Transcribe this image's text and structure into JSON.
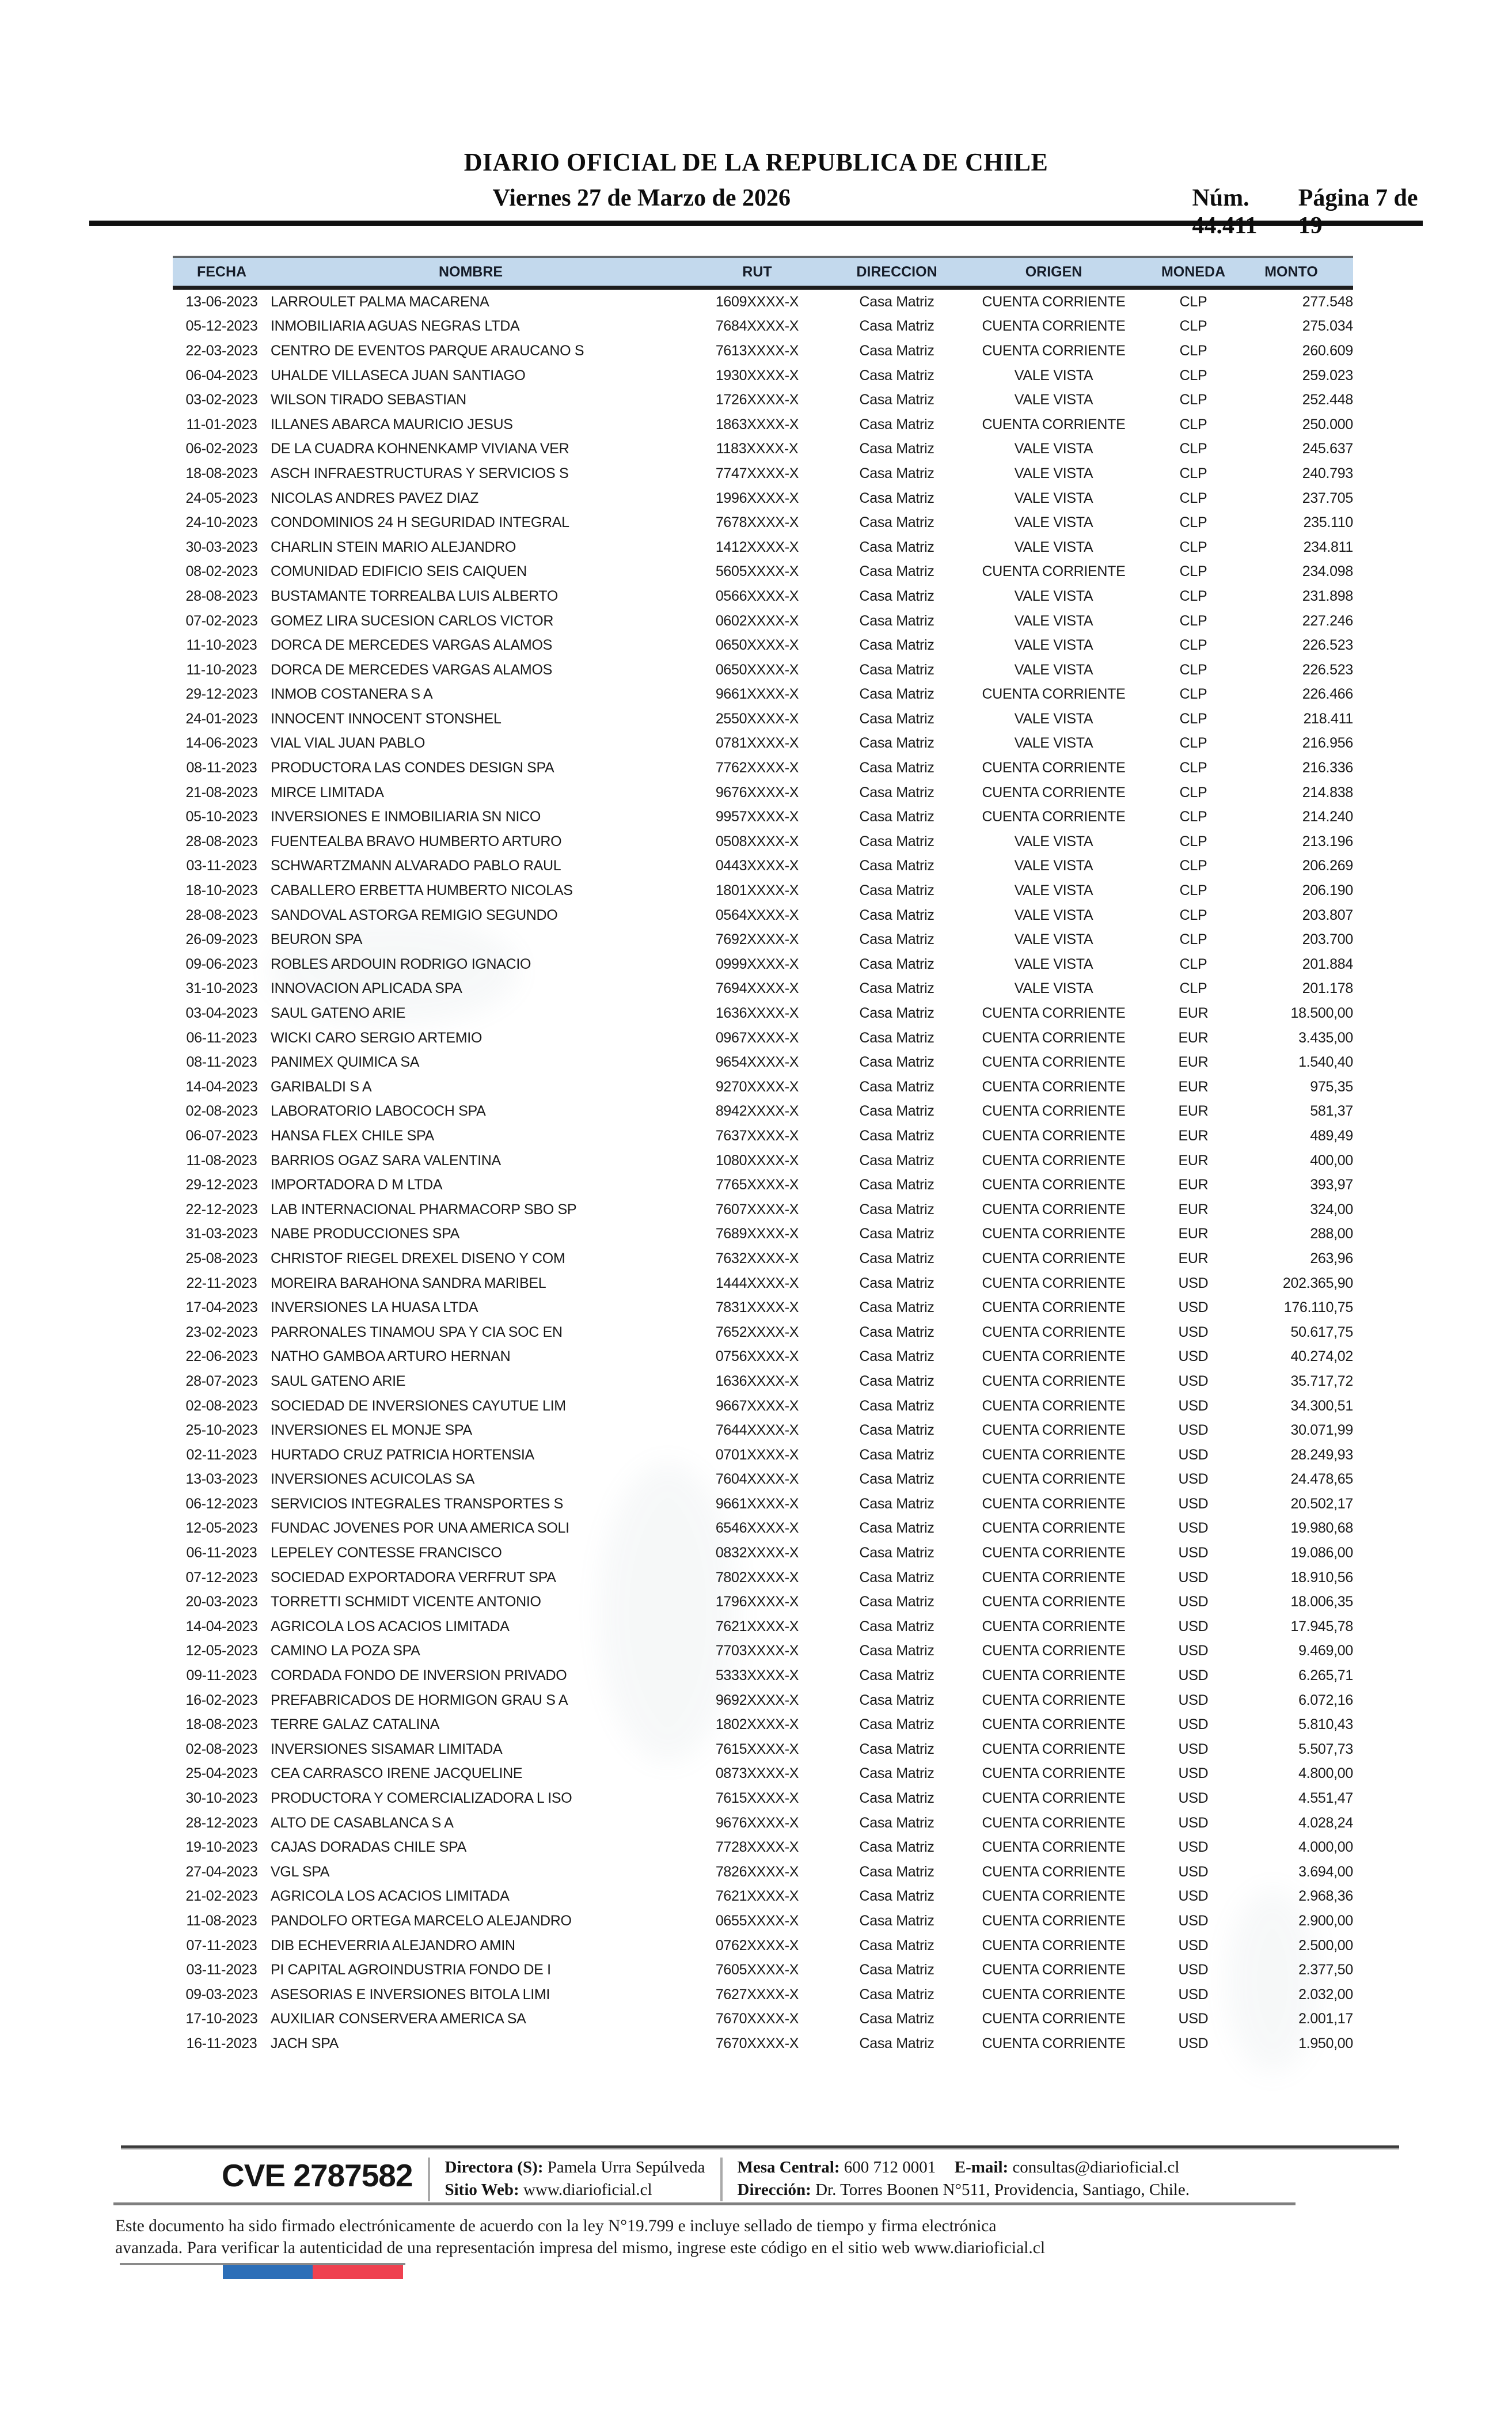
{
  "masthead": {
    "title": "DIARIO OFICIAL DE LA REPUBLICA DE CHILE",
    "issue_number": "Núm. 44.411",
    "date": "Viernes 27 de Marzo de 2026",
    "page_indicator": "Página 7 de 19"
  },
  "table": {
    "columns": [
      "FECHA",
      "NOMBRE",
      "RUT",
      "DIRECCION",
      "ORIGEN",
      "MONEDA",
      "MONTO"
    ],
    "rows": [
      [
        "13-06-2023",
        "LARROULET PALMA MACARENA",
        "1609XXXX-X",
        "Casa Matriz",
        "CUENTA CORRIENTE",
        "CLP",
        "277.548"
      ],
      [
        "05-12-2023",
        "INMOBILIARIA AGUAS NEGRAS LTDA",
        "7684XXXX-X",
        "Casa Matriz",
        "CUENTA CORRIENTE",
        "CLP",
        "275.034"
      ],
      [
        "22-03-2023",
        "CENTRO DE EVENTOS PARQUE ARAUCANO S",
        "7613XXXX-X",
        "Casa Matriz",
        "CUENTA CORRIENTE",
        "CLP",
        "260.609"
      ],
      [
        "06-04-2023",
        "UHALDE VILLASECA JUAN SANTIAGO",
        "1930XXXX-X",
        "Casa Matriz",
        "VALE VISTA",
        "CLP",
        "259.023"
      ],
      [
        "03-02-2023",
        "WILSON TIRADO SEBASTIAN",
        "1726XXXX-X",
        "Casa Matriz",
        "VALE VISTA",
        "CLP",
        "252.448"
      ],
      [
        "11-01-2023",
        "ILLANES ABARCA MAURICIO JESUS",
        "1863XXXX-X",
        "Casa Matriz",
        "CUENTA CORRIENTE",
        "CLP",
        "250.000"
      ],
      [
        "06-02-2023",
        "DE LA CUADRA KOHNENKAMP VIVIANA VER",
        "1183XXXX-X",
        "Casa Matriz",
        "VALE VISTA",
        "CLP",
        "245.637"
      ],
      [
        "18-08-2023",
        "ASCH INFRAESTRUCTURAS Y SERVICIOS S",
        "7747XXXX-X",
        "Casa Matriz",
        "VALE VISTA",
        "CLP",
        "240.793"
      ],
      [
        "24-05-2023",
        "NICOLAS ANDRES PAVEZ DIAZ",
        "1996XXXX-X",
        "Casa Matriz",
        "VALE VISTA",
        "CLP",
        "237.705"
      ],
      [
        "24-10-2023",
        "CONDOMINIOS 24 H SEGURIDAD INTEGRAL",
        "7678XXXX-X",
        "Casa Matriz",
        "VALE VISTA",
        "CLP",
        "235.110"
      ],
      [
        "30-03-2023",
        "CHARLIN STEIN MARIO ALEJANDRO",
        "1412XXXX-X",
        "Casa Matriz",
        "VALE VISTA",
        "CLP",
        "234.811"
      ],
      [
        "08-02-2023",
        "COMUNIDAD EDIFICIO SEIS CAIQUEN",
        "5605XXXX-X",
        "Casa Matriz",
        "CUENTA CORRIENTE",
        "CLP",
        "234.098"
      ],
      [
        "28-08-2023",
        "BUSTAMANTE TORREALBA LUIS ALBERTO",
        "0566XXXX-X",
        "Casa Matriz",
        "VALE VISTA",
        "CLP",
        "231.898"
      ],
      [
        "07-02-2023",
        "GOMEZ LIRA SUCESION CARLOS VICTOR",
        "0602XXXX-X",
        "Casa Matriz",
        "VALE VISTA",
        "CLP",
        "227.246"
      ],
      [
        "11-10-2023",
        "DORCA DE MERCEDES VARGAS ALAMOS",
        "0650XXXX-X",
        "Casa Matriz",
        "VALE VISTA",
        "CLP",
        "226.523"
      ],
      [
        "11-10-2023",
        "DORCA DE MERCEDES VARGAS ALAMOS",
        "0650XXXX-X",
        "Casa Matriz",
        "VALE VISTA",
        "CLP",
        "226.523"
      ],
      [
        "29-12-2023",
        "INMOB COSTANERA S A",
        "9661XXXX-X",
        "Casa Matriz",
        "CUENTA CORRIENTE",
        "CLP",
        "226.466"
      ],
      [
        "24-01-2023",
        "INNOCENT INNOCENT STONSHEL",
        "2550XXXX-X",
        "Casa Matriz",
        "VALE VISTA",
        "CLP",
        "218.411"
      ],
      [
        "14-06-2023",
        "VIAL VIAL JUAN PABLO",
        "0781XXXX-X",
        "Casa Matriz",
        "VALE VISTA",
        "CLP",
        "216.956"
      ],
      [
        "08-11-2023",
        "PRODUCTORA LAS CONDES DESIGN SPA",
        "7762XXXX-X",
        "Casa Matriz",
        "CUENTA CORRIENTE",
        "CLP",
        "216.336"
      ],
      [
        "21-08-2023",
        "MIRCE LIMITADA",
        "9676XXXX-X",
        "Casa Matriz",
        "CUENTA CORRIENTE",
        "CLP",
        "214.838"
      ],
      [
        "05-10-2023",
        "INVERSIONES E INMOBILIARIA SN NICO",
        "9957XXXX-X",
        "Casa Matriz",
        "CUENTA CORRIENTE",
        "CLP",
        "214.240"
      ],
      [
        "28-08-2023",
        "FUENTEALBA BRAVO HUMBERTO ARTURO",
        "0508XXXX-X",
        "Casa Matriz",
        "VALE VISTA",
        "CLP",
        "213.196"
      ],
      [
        "03-11-2023",
        "SCHWARTZMANN ALVARADO PABLO RAUL",
        "0443XXXX-X",
        "Casa Matriz",
        "VALE VISTA",
        "CLP",
        "206.269"
      ],
      [
        "18-10-2023",
        "CABALLERO ERBETTA HUMBERTO NICOLAS",
        "1801XXXX-X",
        "Casa Matriz",
        "VALE VISTA",
        "CLP",
        "206.190"
      ],
      [
        "28-08-2023",
        "SANDOVAL ASTORGA REMIGIO SEGUNDO",
        "0564XXXX-X",
        "Casa Matriz",
        "VALE VISTA",
        "CLP",
        "203.807"
      ],
      [
        "26-09-2023",
        "BEURON SPA",
        "7692XXXX-X",
        "Casa Matriz",
        "VALE VISTA",
        "CLP",
        "203.700"
      ],
      [
        "09-06-2023",
        "ROBLES ARDOUIN RODRIGO IGNACIO",
        "0999XXXX-X",
        "Casa Matriz",
        "VALE VISTA",
        "CLP",
        "201.884"
      ],
      [
        "31-10-2023",
        "INNOVACION APLICADA SPA",
        "7694XXXX-X",
        "Casa Matriz",
        "VALE VISTA",
        "CLP",
        "201.178"
      ],
      [
        "03-04-2023",
        "SAUL GATENO ARIE",
        "1636XXXX-X",
        "Casa Matriz",
        "CUENTA CORRIENTE",
        "EUR",
        "18.500,00"
      ],
      [
        "06-11-2023",
        "WICKI CARO SERGIO ARTEMIO",
        "0967XXXX-X",
        "Casa Matriz",
        "CUENTA CORRIENTE",
        "EUR",
        "3.435,00"
      ],
      [
        "08-11-2023",
        "PANIMEX QUIMICA SA",
        "9654XXXX-X",
        "Casa Matriz",
        "CUENTA CORRIENTE",
        "EUR",
        "1.540,40"
      ],
      [
        "14-04-2023",
        "GARIBALDI S A",
        "9270XXXX-X",
        "Casa Matriz",
        "CUENTA CORRIENTE",
        "EUR",
        "975,35"
      ],
      [
        "02-08-2023",
        "LABORATORIO LABOCOCH SPA",
        "8942XXXX-X",
        "Casa Matriz",
        "CUENTA CORRIENTE",
        "EUR",
        "581,37"
      ],
      [
        "06-07-2023",
        "HANSA FLEX CHILE SPA",
        "7637XXXX-X",
        "Casa Matriz",
        "CUENTA CORRIENTE",
        "EUR",
        "489,49"
      ],
      [
        "11-08-2023",
        "BARRIOS OGAZ SARA VALENTINA",
        "1080XXXX-X",
        "Casa Matriz",
        "CUENTA CORRIENTE",
        "EUR",
        "400,00"
      ],
      [
        "29-12-2023",
        "IMPORTADORA D  M LTDA",
        "7765XXXX-X",
        "Casa Matriz",
        "CUENTA CORRIENTE",
        "EUR",
        "393,97"
      ],
      [
        "22-12-2023",
        "LAB INTERNACIONAL PHARMACORP SBO SP",
        "7607XXXX-X",
        "Casa Matriz",
        "CUENTA CORRIENTE",
        "EUR",
        "324,00"
      ],
      [
        "31-03-2023",
        "NABE PRODUCCIONES SPA",
        "7689XXXX-X",
        "Casa Matriz",
        "CUENTA CORRIENTE",
        "EUR",
        "288,00"
      ],
      [
        "25-08-2023",
        "CHRISTOF RIEGEL DREXEL DISENO Y COM",
        "7632XXXX-X",
        "Casa Matriz",
        "CUENTA CORRIENTE",
        "EUR",
        "263,96"
      ],
      [
        "22-11-2023",
        "MOREIRA BARAHONA SANDRA MARIBEL",
        "1444XXXX-X",
        "Casa Matriz",
        "CUENTA CORRIENTE",
        "USD",
        "202.365,90"
      ],
      [
        "17-04-2023",
        "INVERSIONES LA HUASA LTDA",
        "7831XXXX-X",
        "Casa Matriz",
        "CUENTA CORRIENTE",
        "USD",
        "176.110,75"
      ],
      [
        "23-02-2023",
        "PARRONALES TINAMOU SPA Y CIA SOC EN",
        "7652XXXX-X",
        "Casa Matriz",
        "CUENTA CORRIENTE",
        "USD",
        "50.617,75"
      ],
      [
        "22-06-2023",
        "NATHO GAMBOA ARTURO HERNAN",
        "0756XXXX-X",
        "Casa Matriz",
        "CUENTA CORRIENTE",
        "USD",
        "40.274,02"
      ],
      [
        "28-07-2023",
        "SAUL GATENO ARIE",
        "1636XXXX-X",
        "Casa Matriz",
        "CUENTA CORRIENTE",
        "USD",
        "35.717,72"
      ],
      [
        "02-08-2023",
        "SOCIEDAD DE INVERSIONES CAYUTUE LIM",
        "9667XXXX-X",
        "Casa Matriz",
        "CUENTA CORRIENTE",
        "USD",
        "34.300,51"
      ],
      [
        "25-10-2023",
        "INVERSIONES EL MONJE SPA",
        "7644XXXX-X",
        "Casa Matriz",
        "CUENTA CORRIENTE",
        "USD",
        "30.071,99"
      ],
      [
        "02-11-2023",
        "HURTADO CRUZ PATRICIA HORTENSIA",
        "0701XXXX-X",
        "Casa Matriz",
        "CUENTA CORRIENTE",
        "USD",
        "28.249,93"
      ],
      [
        "13-03-2023",
        "INVERSIONES ACUICOLAS SA",
        "7604XXXX-X",
        "Casa Matriz",
        "CUENTA CORRIENTE",
        "USD",
        "24.478,65"
      ],
      [
        "06-12-2023",
        "SERVICIOS INTEGRALES TRANSPORTES S",
        "9661XXXX-X",
        "Casa Matriz",
        "CUENTA CORRIENTE",
        "USD",
        "20.502,17"
      ],
      [
        "12-05-2023",
        "FUNDAC JOVENES POR UNA AMERICA SOLI",
        "6546XXXX-X",
        "Casa Matriz",
        "CUENTA CORRIENTE",
        "USD",
        "19.980,68"
      ],
      [
        "06-11-2023",
        "LEPELEY CONTESSE FRANCISCO",
        "0832XXXX-X",
        "Casa Matriz",
        "CUENTA CORRIENTE",
        "USD",
        "19.086,00"
      ],
      [
        "07-12-2023",
        "SOCIEDAD EXPORTADORA VERFRUT SPA",
        "7802XXXX-X",
        "Casa Matriz",
        "CUENTA CORRIENTE",
        "USD",
        "18.910,56"
      ],
      [
        "20-03-2023",
        "TORRETTI SCHMIDT VICENTE ANTONIO",
        "1796XXXX-X",
        "Casa Matriz",
        "CUENTA CORRIENTE",
        "USD",
        "18.006,35"
      ],
      [
        "14-04-2023",
        "AGRICOLA LOS ACACIOS LIMITADA",
        "7621XXXX-X",
        "Casa Matriz",
        "CUENTA CORRIENTE",
        "USD",
        "17.945,78"
      ],
      [
        "12-05-2023",
        "CAMINO LA POZA SPA",
        "7703XXXX-X",
        "Casa Matriz",
        "CUENTA CORRIENTE",
        "USD",
        "9.469,00"
      ],
      [
        "09-11-2023",
        "CORDADA FONDO DE INVERSION PRIVADO",
        "5333XXXX-X",
        "Casa Matriz",
        "CUENTA CORRIENTE",
        "USD",
        "6.265,71"
      ],
      [
        "16-02-2023",
        "PREFABRICADOS DE HORMIGON GRAU S A",
        "9692XXXX-X",
        "Casa Matriz",
        "CUENTA CORRIENTE",
        "USD",
        "6.072,16"
      ],
      [
        "18-08-2023",
        "TERRE GALAZ CATALINA",
        "1802XXXX-X",
        "Casa Matriz",
        "CUENTA CORRIENTE",
        "USD",
        "5.810,43"
      ],
      [
        "02-08-2023",
        "INVERSIONES SISAMAR LIMITADA",
        "7615XXXX-X",
        "Casa Matriz",
        "CUENTA CORRIENTE",
        "USD",
        "5.507,73"
      ],
      [
        "25-04-2023",
        "CEA CARRASCO IRENE JACQUELINE",
        "0873XXXX-X",
        "Casa Matriz",
        "CUENTA CORRIENTE",
        "USD",
        "4.800,00"
      ],
      [
        "30-10-2023",
        "PRODUCTORA Y COMERCIALIZADORA L ISO",
        "7615XXXX-X",
        "Casa Matriz",
        "CUENTA CORRIENTE",
        "USD",
        "4.551,47"
      ],
      [
        "28-12-2023",
        "ALTO DE CASABLANCA S A",
        "9676XXXX-X",
        "Casa Matriz",
        "CUENTA CORRIENTE",
        "USD",
        "4.028,24"
      ],
      [
        "19-10-2023",
        "CAJAS DORADAS CHILE SPA",
        "7728XXXX-X",
        "Casa Matriz",
        "CUENTA CORRIENTE",
        "USD",
        "4.000,00"
      ],
      [
        "27-04-2023",
        "VGL SPA",
        "7826XXXX-X",
        "Casa Matriz",
        "CUENTA CORRIENTE",
        "USD",
        "3.694,00"
      ],
      [
        "21-02-2023",
        "AGRICOLA LOS ACACIOS LIMITADA",
        "7621XXXX-X",
        "Casa Matriz",
        "CUENTA CORRIENTE",
        "USD",
        "2.968,36"
      ],
      [
        "11-08-2023",
        "PANDOLFO ORTEGA MARCELO ALEJANDRO",
        "0655XXXX-X",
        "Casa Matriz",
        "CUENTA CORRIENTE",
        "USD",
        "2.900,00"
      ],
      [
        "07-11-2023",
        "DIB ECHEVERRIA ALEJANDRO AMIN",
        "0762XXXX-X",
        "Casa Matriz",
        "CUENTA CORRIENTE",
        "USD",
        "2.500,00"
      ],
      [
        "03-11-2023",
        "PI CAPITAL AGROINDUSTRIA FONDO DE I",
        "7605XXXX-X",
        "Casa Matriz",
        "CUENTA CORRIENTE",
        "USD",
        "2.377,50"
      ],
      [
        "09-03-2023",
        "ASESORIAS E INVERSIONES BITOLA LIMI",
        "7627XXXX-X",
        "Casa Matriz",
        "CUENTA CORRIENTE",
        "USD",
        "2.032,00"
      ],
      [
        "17-10-2023",
        "AUXILIAR CONSERVERA AMERICA SA",
        "7670XXXX-X",
        "Casa Matriz",
        "CUENTA CORRIENTE",
        "USD",
        "2.001,17"
      ],
      [
        "16-11-2023",
        "JACH SPA",
        "7670XXXX-X",
        "Casa Matriz",
        "CUENTA CORRIENTE",
        "USD",
        "1.950,00"
      ]
    ]
  },
  "footer": {
    "cve": "CVE 2787582",
    "director_label": "Directora (S):",
    "director_value": "Pamela Urra Sepúlveda",
    "website_label": "Sitio Web:",
    "website_value": "www.diarioficial.cl",
    "phone_label": "Mesa Central:",
    "phone_value": "600 712 0001",
    "email_label": "E-mail:",
    "email_value": "consultas@diarioficial.cl",
    "address_label": "Dirección:",
    "address_value": "Dr. Torres Boonen N°511, Providencia, Santiago, Chile.",
    "disclaimer_line1": "Este documento ha sido firmado electrónicamente de acuerdo con la ley N°19.799 e incluye sellado de tiempo y firma electrónica",
    "disclaimer_line2": "avanzada. Para verificar la autenticidad de una representación impresa del mismo, ingrese este código en el sitio web www.diarioficial.cl"
  },
  "colors": {
    "table_header_bg": "#c3d9ed",
    "flag_blue": "#2d6fb8",
    "flag_red": "#ef4150"
  }
}
